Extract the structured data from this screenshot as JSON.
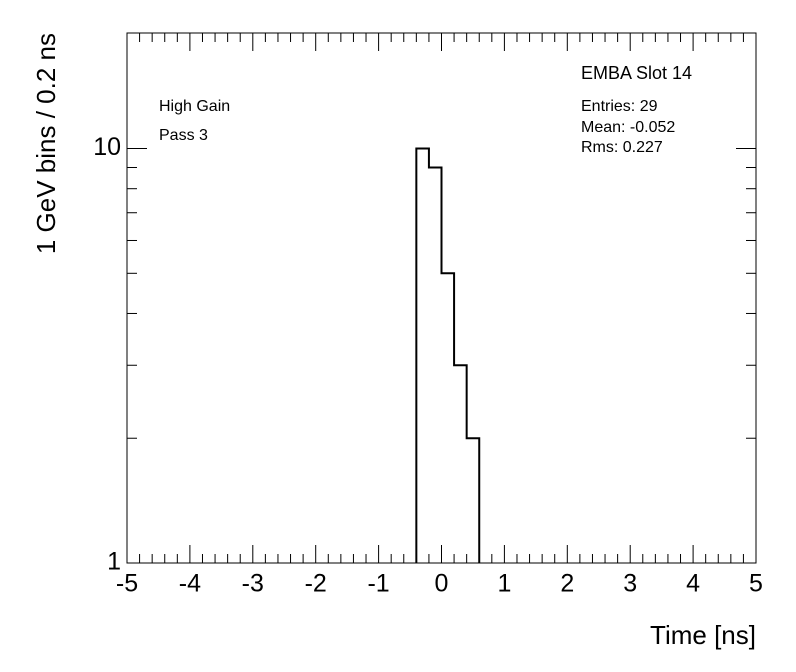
{
  "chart_data": {
    "type": "histogram",
    "title": "EMBA Slot 14",
    "stats": [
      "Entries: 29",
      "Mean: -0.052",
      "Rms: 0.227"
    ],
    "annotations": [
      "High Gain",
      "Pass 3"
    ],
    "x_label": "Time [ns]",
    "y_label": "1 GeV bins / 0.2 ns",
    "bins": [
      -0.4,
      -0.2,
      0,
      0.2,
      0.4,
      0.6
    ],
    "values": [
      10,
      9,
      5,
      3,
      2
    ],
    "color": "#000000",
    "xlim": [
      -5,
      5
    ],
    "xticks": [
      -5,
      -4,
      -3,
      -2,
      -1,
      0,
      1,
      2,
      3,
      4,
      5
    ],
    "x_minor_divisions": 5,
    "ylim": [
      1,
      19
    ],
    "yticks": [
      1,
      10
    ],
    "yminorticks": [
      2,
      3,
      4,
      5,
      6,
      7,
      8,
      9
    ],
    "log_y": true,
    "grid": false
  }
}
